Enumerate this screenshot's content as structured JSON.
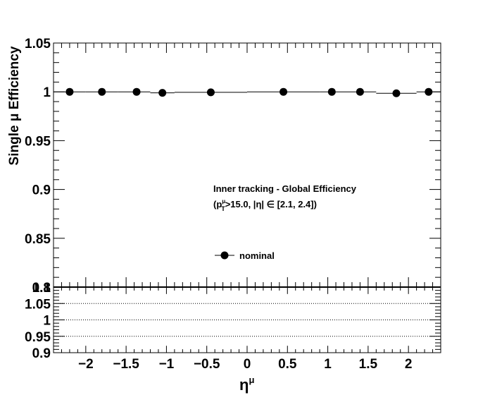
{
  "chart_data": {
    "type": "scatter",
    "ylabel_main": "Single μ Efficiency",
    "xlabel": "η^μ",
    "xlabel_base": "η",
    "xlabel_sup": "μ",
    "xlim": [
      -2.4,
      2.4
    ],
    "ylim_main": [
      0.8,
      1.05
    ],
    "ylim_ratio": [
      0.9,
      1.1
    ],
    "x_ticks": [
      -2,
      -1.5,
      -1,
      -0.5,
      0,
      0.5,
      1,
      1.5,
      2
    ],
    "x_tick_labels": [
      "−2",
      "−1.5",
      "−1",
      "−0.5",
      "0",
      "0.5",
      "1",
      "1.5",
      "2"
    ],
    "y_ticks_main": [
      0.8,
      0.85,
      0.9,
      0.95,
      1,
      1.05
    ],
    "y_tick_labels_main": [
      "0.8",
      "0.85",
      "0.9",
      "0.95",
      "1",
      "1.05"
    ],
    "y_ticks_ratio": [
      0.9,
      0.95,
      1,
      1.05,
      1.1
    ],
    "y_tick_labels_ratio": [
      "0.9",
      "0.95",
      "1",
      "1.05",
      "1.1"
    ],
    "ratio_gridlines": [
      0.95,
      1,
      1.05
    ],
    "annotation_title": "Inner tracking - Global Efficiency",
    "annotation_cut": {
      "open": "(p",
      "sup": "μ",
      "sub": "T",
      "rest": ">15.0, |η| ∈ [2.1, 2.4])"
    },
    "series": [
      {
        "name": "nominal",
        "color": "#000000",
        "x": [
          -2.2,
          -1.8,
          -1.37,
          -1.05,
          -0.45,
          0.45,
          1.05,
          1.4,
          1.85,
          2.25
        ],
        "xerr_low": [
          -2.4,
          -2.0,
          -1.6,
          -1.2,
          -0.9,
          0.0,
          0.9,
          1.2,
          1.6,
          2.1
        ],
        "xerr_high": [
          -2.0,
          -1.6,
          -1.2,
          -0.9,
          0.0,
          0.9,
          1.2,
          1.6,
          2.1,
          2.4
        ],
        "y": [
          1.0,
          1.0,
          1.0,
          0.999,
          0.9995,
          1.0,
          1.0,
          1.0,
          0.9985,
          1.0
        ]
      }
    ],
    "grid": false,
    "legend_position": "center-bottom"
  }
}
